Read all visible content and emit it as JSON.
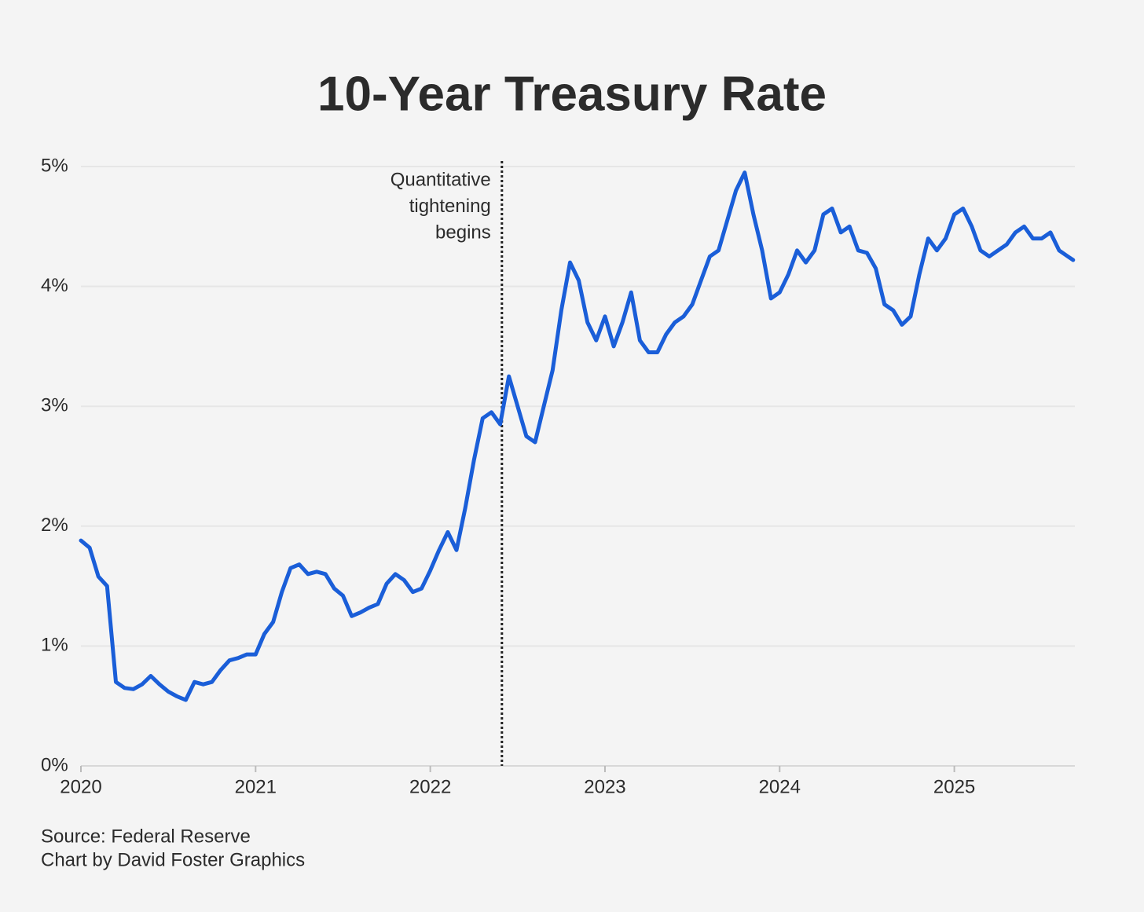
{
  "chart_data": {
    "type": "line",
    "title": "10-Year Treasury Rate",
    "x": [
      2020.0,
      2020.05,
      2020.1,
      2020.15,
      2020.2,
      2020.25,
      2020.3,
      2020.35,
      2020.4,
      2020.45,
      2020.5,
      2020.55,
      2020.6,
      2020.65,
      2020.7,
      2020.75,
      2020.8,
      2020.85,
      2020.9,
      2020.95,
      2021.0,
      2021.05,
      2021.1,
      2021.15,
      2021.2,
      2021.25,
      2021.3,
      2021.35,
      2021.4,
      2021.45,
      2021.5,
      2021.55,
      2021.6,
      2021.65,
      2021.7,
      2021.75,
      2021.8,
      2021.85,
      2021.9,
      2021.95,
      2022.0,
      2022.05,
      2022.1,
      2022.15,
      2022.2,
      2022.25,
      2022.3,
      2022.35,
      2022.4,
      2022.45,
      2022.5,
      2022.55,
      2022.6,
      2022.65,
      2022.7,
      2022.75,
      2022.8,
      2022.85,
      2022.9,
      2022.95,
      2023.0,
      2023.05,
      2023.1,
      2023.15,
      2023.2,
      2023.25,
      2023.3,
      2023.35,
      2023.4,
      2023.45,
      2023.5,
      2023.55,
      2023.6,
      2023.65,
      2023.7,
      2023.75,
      2023.8,
      2023.85,
      2023.9,
      2023.95,
      2024.0,
      2024.05,
      2024.1,
      2024.15,
      2024.2,
      2024.25,
      2024.3,
      2024.35,
      2024.4,
      2024.45,
      2024.5,
      2024.55,
      2024.6,
      2024.65,
      2024.7,
      2024.75,
      2024.8,
      2024.85,
      2024.9,
      2024.95,
      2025.0,
      2025.05,
      2025.1,
      2025.15,
      2025.2,
      2025.25,
      2025.3,
      2025.35,
      2025.4,
      2025.45,
      2025.5,
      2025.55,
      2025.6,
      2025.65,
      2025.68
    ],
    "values": [
      1.88,
      1.82,
      1.58,
      1.5,
      0.7,
      0.65,
      0.64,
      0.68,
      0.75,
      0.68,
      0.62,
      0.58,
      0.55,
      0.7,
      0.68,
      0.7,
      0.8,
      0.88,
      0.9,
      0.93,
      0.93,
      1.1,
      1.2,
      1.45,
      1.65,
      1.68,
      1.6,
      1.62,
      1.6,
      1.48,
      1.42,
      1.25,
      1.28,
      1.32,
      1.35,
      1.52,
      1.6,
      1.55,
      1.45,
      1.48,
      1.63,
      1.8,
      1.95,
      1.8,
      2.15,
      2.55,
      2.9,
      2.95,
      2.85,
      3.25,
      3.0,
      2.75,
      2.7,
      3.0,
      3.3,
      3.8,
      4.2,
      4.05,
      3.7,
      3.55,
      3.75,
      3.5,
      3.7,
      3.95,
      3.55,
      3.45,
      3.45,
      3.6,
      3.7,
      3.75,
      3.85,
      4.05,
      4.25,
      4.3,
      4.55,
      4.8,
      4.95,
      4.6,
      4.3,
      3.9,
      3.95,
      4.1,
      4.3,
      4.2,
      4.3,
      4.6,
      4.65,
      4.45,
      4.5,
      4.3,
      4.28,
      4.15,
      3.85,
      3.8,
      3.68,
      3.75,
      4.1,
      4.4,
      4.3,
      4.4,
      4.6,
      4.65,
      4.5,
      4.3,
      4.25,
      4.3,
      4.35,
      4.45,
      4.5,
      4.4,
      4.4,
      4.45,
      4.3,
      4.25,
      4.22
    ],
    "color": "#1a5ed8",
    "xlim": [
      2020,
      2025.69
    ],
    "xticks": [
      2020,
      2021,
      2022,
      2023,
      2024,
      2025
    ],
    "ylim": [
      0,
      5
    ],
    "yticks": [
      {
        "value": 0,
        "label": "0%"
      },
      {
        "value": 1,
        "label": "1%"
      },
      {
        "value": 2,
        "label": "2%"
      },
      {
        "value": 3,
        "label": "3%"
      },
      {
        "value": 4,
        "label": "4%"
      },
      {
        "value": 5,
        "label": "5%"
      }
    ],
    "grid": true,
    "annotation": {
      "x": 2022.41,
      "lines": [
        "Quantitative",
        "tightening",
        "begins"
      ]
    },
    "source": "Source: Federal Reserve",
    "credit": "Chart by David Foster Graphics"
  }
}
